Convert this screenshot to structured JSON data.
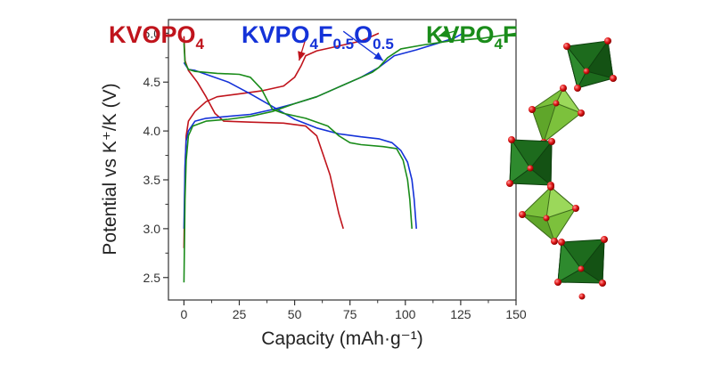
{
  "chart_data": {
    "type": "line",
    "xlabel": "Capacity (mAh·g⁻¹)",
    "ylabel": "Potential vs K⁺/K (V)",
    "xlim": [
      -7,
      150
    ],
    "ylim": [
      2.27,
      5.14
    ],
    "x_ticks": [
      0,
      25,
      50,
      75,
      100,
      125,
      150
    ],
    "y_ticks": [
      2.5,
      3.0,
      3.5,
      4.0,
      4.5,
      5.0
    ],
    "x_tick_labels": [
      "0",
      "25",
      "50",
      "75",
      "100",
      "125",
      "150"
    ],
    "y_tick_labels": [
      "2.5",
      "3.0",
      "3.5",
      "4.0",
      "4.5",
      "5.0"
    ],
    "grid": false,
    "series": [
      {
        "name": "KVOPO4",
        "label": {
          "main": "KVOPO",
          "sub": "4",
          "rest": ""
        },
        "color": "#c0141c",
        "arrow_from": [
          56,
          5.02
        ],
        "arrow_to": [
          52,
          4.72
        ],
        "charge": [
          [
            0,
            2.8
          ],
          [
            0.5,
            3.6
          ],
          [
            1,
            3.95
          ],
          [
            2,
            4.1
          ],
          [
            5,
            4.2
          ],
          [
            10,
            4.3
          ],
          [
            15,
            4.35
          ],
          [
            25,
            4.38
          ],
          [
            35,
            4.41
          ],
          [
            45,
            4.46
          ],
          [
            50,
            4.55
          ],
          [
            53,
            4.67
          ],
          [
            55,
            4.77
          ],
          [
            60,
            4.82
          ],
          [
            70,
            4.87
          ],
          [
            80,
            4.92
          ],
          [
            88,
            5.0
          ]
        ],
        "discharge": [
          [
            0,
            4.97
          ],
          [
            0.5,
            4.72
          ],
          [
            2,
            4.62
          ],
          [
            6,
            4.5
          ],
          [
            10,
            4.35
          ],
          [
            14,
            4.18
          ],
          [
            18,
            4.1
          ],
          [
            30,
            4.09
          ],
          [
            45,
            4.08
          ],
          [
            55,
            4.05
          ],
          [
            60,
            3.95
          ],
          [
            63,
            3.75
          ],
          [
            66,
            3.55
          ],
          [
            68,
            3.35
          ],
          [
            70,
            3.15
          ],
          [
            72,
            3.0
          ]
        ]
      },
      {
        "name": "KVPO4F0.5O0.5",
        "label": {
          "main": "KVPO",
          "sub": "4",
          "rest": "F",
          "sub2": "0.5",
          "rest2": "O",
          "sub3": "0.5"
        },
        "color": "#1432d8",
        "arrow_from": [
          72,
          5.02
        ],
        "arrow_to": [
          90,
          4.72
        ],
        "charge": [
          [
            0,
            3.0
          ],
          [
            0.5,
            3.65
          ],
          [
            1,
            3.9
          ],
          [
            2,
            4.0
          ],
          [
            5,
            4.1
          ],
          [
            10,
            4.13
          ],
          [
            20,
            4.15
          ],
          [
            30,
            4.17
          ],
          [
            40,
            4.22
          ],
          [
            50,
            4.28
          ],
          [
            60,
            4.35
          ],
          [
            70,
            4.45
          ],
          [
            80,
            4.55
          ],
          [
            88,
            4.65
          ],
          [
            95,
            4.77
          ],
          [
            105,
            4.83
          ],
          [
            115,
            4.9
          ],
          [
            122,
            4.95
          ],
          [
            126,
            5.0
          ]
        ],
        "discharge": [
          [
            0,
            4.7
          ],
          [
            2,
            4.63
          ],
          [
            5,
            4.62
          ],
          [
            10,
            4.58
          ],
          [
            20,
            4.5
          ],
          [
            30,
            4.38
          ],
          [
            40,
            4.25
          ],
          [
            50,
            4.12
          ],
          [
            60,
            4.03
          ],
          [
            70,
            3.97
          ],
          [
            80,
            3.94
          ],
          [
            88,
            3.92
          ],
          [
            94,
            3.88
          ],
          [
            98,
            3.8
          ],
          [
            101,
            3.68
          ],
          [
            103,
            3.5
          ],
          [
            104,
            3.3
          ],
          [
            105,
            3.0
          ]
        ]
      },
      {
        "name": "KVPO4F",
        "label": {
          "main": "KVPO",
          "sub": "4",
          "rest": "F"
        },
        "color": "#1a8c1a",
        "arrow_from": [
          122,
          5.02
        ],
        "arrow_to": [
          115,
          4.97
        ],
        "charge": [
          [
            0,
            2.45
          ],
          [
            0.5,
            3.3
          ],
          [
            1,
            3.7
          ],
          [
            2,
            3.95
          ],
          [
            4,
            4.05
          ],
          [
            10,
            4.1
          ],
          [
            20,
            4.12
          ],
          [
            30,
            4.15
          ],
          [
            40,
            4.2
          ],
          [
            50,
            4.28
          ],
          [
            60,
            4.35
          ],
          [
            70,
            4.45
          ],
          [
            80,
            4.55
          ],
          [
            85,
            4.6
          ],
          [
            88,
            4.65
          ],
          [
            92,
            4.75
          ],
          [
            98,
            4.84
          ],
          [
            108,
            4.88
          ],
          [
            120,
            4.92
          ],
          [
            135,
            4.95
          ],
          [
            150,
            5.0
          ]
        ],
        "discharge": [
          [
            0,
            4.9
          ],
          [
            0.5,
            4.7
          ],
          [
            2,
            4.63
          ],
          [
            5,
            4.61
          ],
          [
            10,
            4.6
          ],
          [
            15,
            4.59
          ],
          [
            25,
            4.58
          ],
          [
            30,
            4.55
          ],
          [
            35,
            4.43
          ],
          [
            38,
            4.3
          ],
          [
            40,
            4.22
          ],
          [
            45,
            4.18
          ],
          [
            55,
            4.13
          ],
          [
            65,
            4.05
          ],
          [
            70,
            3.95
          ],
          [
            75,
            3.88
          ],
          [
            80,
            3.86
          ],
          [
            90,
            3.84
          ],
          [
            96,
            3.82
          ],
          [
            99,
            3.7
          ],
          [
            101,
            3.5
          ],
          [
            102,
            3.3
          ],
          [
            103,
            3.0
          ]
        ]
      }
    ]
  },
  "colors": {
    "dark_green": "#1d6b1d",
    "light_green": "#7cc13c",
    "oxygen_red": "#e02020"
  }
}
